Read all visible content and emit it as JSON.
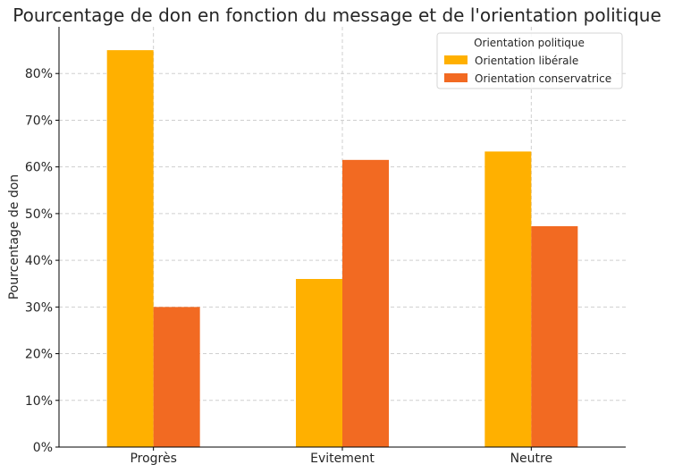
{
  "chart_data": {
    "type": "bar",
    "title": "Pourcentage de don en fonction du message et de l'orientation politique",
    "xlabel": "",
    "ylabel": "Pourcentage de don",
    "categories": [
      "Progrès",
      "Evitement",
      "Neutre"
    ],
    "series": [
      {
        "name": "Orientation libérale",
        "values": [
          85,
          36,
          63.3
        ],
        "color": "#FFB000"
      },
      {
        "name": "Orientation conservatrice",
        "values": [
          30,
          61.5,
          47.3
        ],
        "color": "#F26A22"
      }
    ],
    "ylim": [
      0,
      90
    ],
    "yticks": [
      0,
      10,
      20,
      30,
      40,
      50,
      60,
      70,
      80
    ],
    "ytick_labels": [
      "0%",
      "10%",
      "20%",
      "30%",
      "40%",
      "50%",
      "60%",
      "70%",
      "80%"
    ],
    "grid": true,
    "legend": {
      "title": "Orientation politique",
      "placement": "top-right"
    }
  }
}
